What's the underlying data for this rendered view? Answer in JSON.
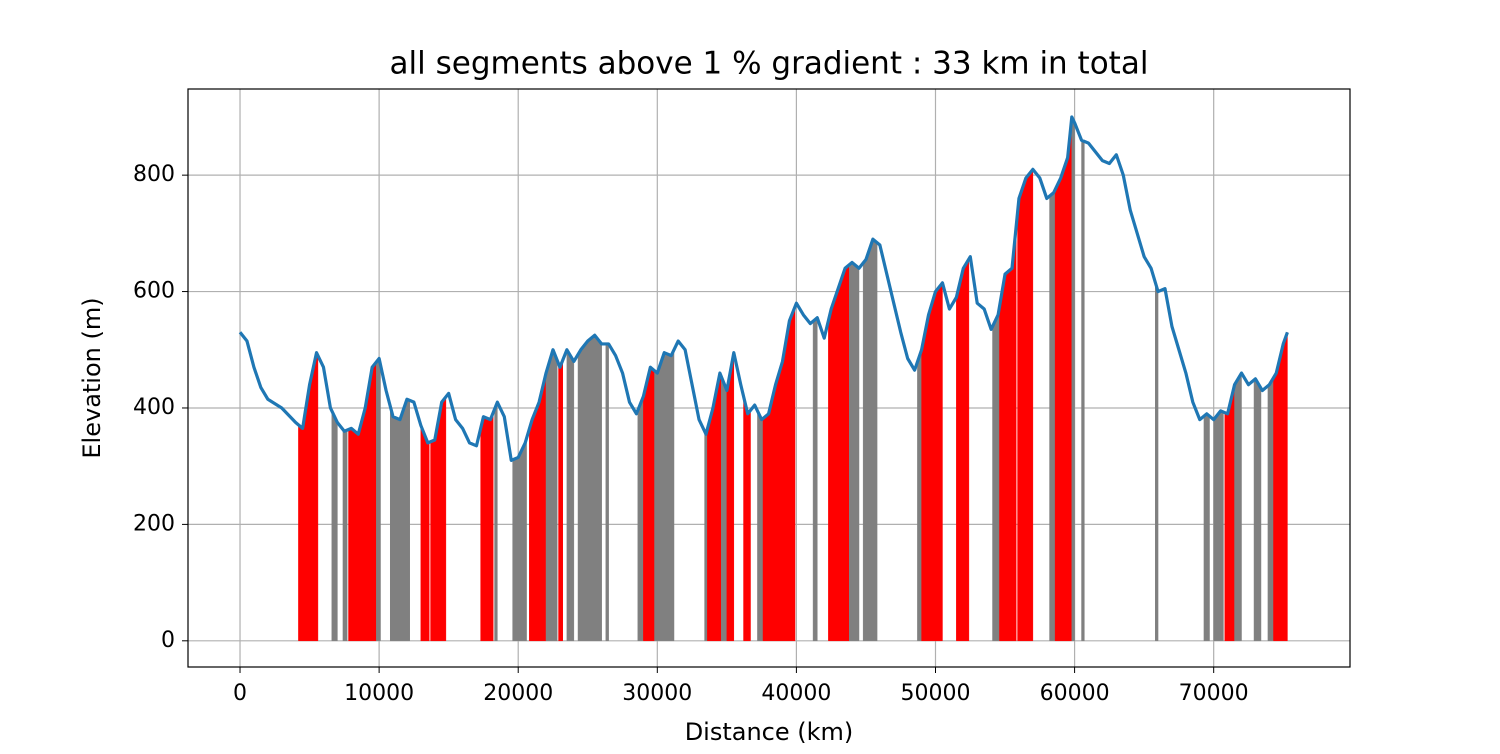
{
  "chart_data": {
    "type": "line",
    "title": "all segments above 1 % gradient : 33 km in total",
    "x_label": "Distance (km)",
    "y_label": "Elevation (m)",
    "x": [
      0,
      500,
      1000,
      1500,
      2000,
      3000,
      4000,
      4500,
      5000,
      5500,
      6000,
      6500,
      7000,
      7500,
      8000,
      8500,
      9000,
      9500,
      10000,
      10500,
      11000,
      11500,
      12000,
      12500,
      13000,
      13500,
      14000,
      14500,
      15000,
      15500,
      16000,
      16500,
      17000,
      17500,
      18000,
      18500,
      19000,
      19500,
      20000,
      20500,
      21000,
      21500,
      22000,
      22500,
      23000,
      23500,
      24000,
      24500,
      25000,
      25500,
      26000,
      26500,
      27000,
      27500,
      28000,
      28500,
      29000,
      29500,
      30000,
      30500,
      31000,
      31500,
      32000,
      32500,
      33000,
      33500,
      34000,
      34500,
      35000,
      35500,
      36000,
      36500,
      37000,
      37500,
      38000,
      38500,
      39000,
      39500,
      40000,
      40500,
      41000,
      41500,
      42000,
      42500,
      43000,
      43500,
      44000,
      44500,
      45000,
      45500,
      46000,
      46500,
      47000,
      47500,
      48000,
      48500,
      49000,
      49500,
      50000,
      50500,
      51000,
      51500,
      52000,
      52500,
      53000,
      53500,
      54000,
      54500,
      55000,
      55500,
      56000,
      56500,
      57000,
      57500,
      58000,
      58500,
      59000,
      59500,
      59800,
      60000,
      60500,
      61000,
      61500,
      62000,
      62500,
      63000,
      63500,
      64000,
      64500,
      65000,
      65500,
      66000,
      66500,
      67000,
      67500,
      68000,
      68500,
      69000,
      69500,
      70000,
      70500,
      71000,
      71500,
      72000,
      72500,
      73000,
      73500,
      74000,
      74500,
      75000,
      75300
    ],
    "series": [
      {
        "color": "#1f77b4",
        "values": [
          530,
          515,
          470,
          435,
          415,
          400,
          375,
          365,
          440,
          495,
          470,
          400,
          375,
          360,
          365,
          355,
          400,
          470,
          485,
          430,
          385,
          380,
          415,
          410,
          370,
          340,
          345,
          410,
          425,
          380,
          365,
          340,
          335,
          385,
          380,
          410,
          385,
          310,
          315,
          340,
          380,
          410,
          460,
          500,
          470,
          500,
          480,
          500,
          515,
          525,
          510,
          510,
          490,
          460,
          410,
          390,
          420,
          470,
          460,
          495,
          490,
          515,
          500,
          440,
          380,
          355,
          400,
          460,
          430,
          495,
          440,
          390,
          405,
          380,
          390,
          440,
          480,
          550,
          580,
          560,
          545,
          555,
          520,
          570,
          605,
          640,
          650,
          640,
          655,
          690,
          680,
          630,
          580,
          530,
          485,
          465,
          500,
          560,
          600,
          615,
          570,
          590,
          640,
          660,
          580,
          570,
          535,
          560,
          630,
          640,
          760,
          795,
          810,
          795,
          760,
          770,
          795,
          830,
          900,
          890,
          860,
          855,
          840,
          825,
          820,
          835,
          800,
          740,
          700,
          660,
          640,
          600,
          605,
          540,
          500,
          460,
          410,
          380,
          390,
          380,
          395,
          390,
          440,
          460,
          440,
          450,
          430,
          440,
          460,
          510,
          530
        ]
      }
    ],
    "segments": [
      {
        "x": [
          4200,
          5600
        ],
        "color": "#ff0000"
      },
      {
        "x": [
          6600,
          7000
        ],
        "color": "#808080"
      },
      {
        "x": [
          7400,
          7700
        ],
        "color": "#808080"
      },
      {
        "x": [
          7800,
          9800
        ],
        "color": "#ff0000"
      },
      {
        "x": [
          9800,
          10100
        ],
        "color": "#808080"
      },
      {
        "x": [
          10800,
          12200
        ],
        "color": "#808080"
      },
      {
        "x": [
          13000,
          13600
        ],
        "color": "#ff0000"
      },
      {
        "x": [
          13700,
          14800
        ],
        "color": "#ff0000"
      },
      {
        "x": [
          17300,
          18200
        ],
        "color": "#ff0000"
      },
      {
        "x": [
          18300,
          18500
        ],
        "color": "#808080"
      },
      {
        "x": [
          19600,
          20600
        ],
        "color": "#808080"
      },
      {
        "x": [
          20800,
          22000
        ],
        "color": "#ff0000"
      },
      {
        "x": [
          22000,
          22800
        ],
        "color": "#808080"
      },
      {
        "x": [
          22900,
          23200
        ],
        "color": "#ff0000"
      },
      {
        "x": [
          23500,
          24000
        ],
        "color": "#808080"
      },
      {
        "x": [
          24300,
          26000
        ],
        "color": "#808080"
      },
      {
        "x": [
          26300,
          26500
        ],
        "color": "#808080"
      },
      {
        "x": [
          28600,
          29000
        ],
        "color": "#808080"
      },
      {
        "x": [
          29000,
          29800
        ],
        "color": "#ff0000"
      },
      {
        "x": [
          29800,
          31200
        ],
        "color": "#808080"
      },
      {
        "x": [
          33400,
          33600
        ],
        "color": "#808080"
      },
      {
        "x": [
          33600,
          34600
        ],
        "color": "#ff0000"
      },
      {
        "x": [
          34600,
          35000
        ],
        "color": "#808080"
      },
      {
        "x": [
          35000,
          35500
        ],
        "color": "#ff0000"
      },
      {
        "x": [
          36200,
          36700
        ],
        "color": "#ff0000"
      },
      {
        "x": [
          37200,
          37600
        ],
        "color": "#808080"
      },
      {
        "x": [
          37600,
          39900
        ],
        "color": "#ff0000"
      },
      {
        "x": [
          41200,
          41500
        ],
        "color": "#808080"
      },
      {
        "x": [
          42300,
          43800
        ],
        "color": "#ff0000"
      },
      {
        "x": [
          43800,
          44500
        ],
        "color": "#808080"
      },
      {
        "x": [
          44800,
          45800
        ],
        "color": "#808080"
      },
      {
        "x": [
          48700,
          49000
        ],
        "color": "#808080"
      },
      {
        "x": [
          49000,
          50500
        ],
        "color": "#ff0000"
      },
      {
        "x": [
          51500,
          52400
        ],
        "color": "#ff0000"
      },
      {
        "x": [
          54100,
          54600
        ],
        "color": "#808080"
      },
      {
        "x": [
          54600,
          55800
        ],
        "color": "#ff0000"
      },
      {
        "x": [
          55900,
          57000
        ],
        "color": "#ff0000"
      },
      {
        "x": [
          58200,
          58600
        ],
        "color": "#808080"
      },
      {
        "x": [
          58600,
          59800
        ],
        "color": "#ff0000"
      },
      {
        "x": [
          59800,
          60000
        ],
        "color": "#808080"
      },
      {
        "x": [
          60500,
          60700
        ],
        "color": "#808080"
      },
      {
        "x": [
          65800,
          66000
        ],
        "color": "#808080"
      },
      {
        "x": [
          69300,
          69700
        ],
        "color": "#808080"
      },
      {
        "x": [
          70000,
          70700
        ],
        "color": "#808080"
      },
      {
        "x": [
          70800,
          71500
        ],
        "color": "#ff0000"
      },
      {
        "x": [
          71500,
          72000
        ],
        "color": "#808080"
      },
      {
        "x": [
          72900,
          73400
        ],
        "color": "#808080"
      },
      {
        "x": [
          73900,
          74300
        ],
        "color": "#808080"
      },
      {
        "x": [
          74300,
          75300
        ],
        "color": "#ff0000"
      }
    ],
    "xlim": [
      -3740,
      79800
    ],
    "ylim": [
      -45,
      948
    ],
    "xticks": [
      0,
      10000,
      20000,
      30000,
      40000,
      50000,
      60000,
      70000
    ],
    "yticks": [
      0,
      200,
      400,
      600,
      800
    ],
    "grid": true
  }
}
